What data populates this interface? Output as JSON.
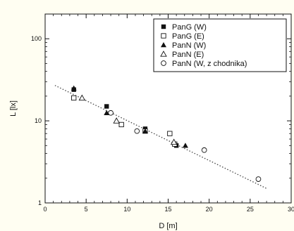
{
  "chart_data": {
    "type": "scatter",
    "title": "",
    "xlabel": "D [m]",
    "ylabel": "L [lx]",
    "xlim": [
      0,
      30
    ],
    "ylim": [
      1,
      200
    ],
    "yscale": "log",
    "xticks": [
      0,
      5,
      10,
      15,
      20,
      25,
      30
    ],
    "xtick_labels": [
      "0",
      "5",
      "10",
      "15",
      "20",
      "25",
      "30"
    ],
    "yticks": [
      1,
      10,
      100
    ],
    "ytick_labels": [
      "1",
      "10",
      "100"
    ],
    "grid": false,
    "legend_position": "top-right",
    "colors": {
      "background": "#fffef2",
      "plot_background": "#ffffff",
      "ink": "#111111",
      "trend_line": "#444444"
    },
    "series": [
      {
        "name": "PanG (W)",
        "marker": "filled-square",
        "points": [
          {
            "x": 3.5,
            "y": 24
          },
          {
            "x": 7.5,
            "y": 15
          },
          {
            "x": 12.2,
            "y": 8
          },
          {
            "x": 16,
            "y": 5
          }
        ]
      },
      {
        "name": "PanG (E)",
        "marker": "open-square",
        "points": [
          {
            "x": 3.5,
            "y": 19
          },
          {
            "x": 9.3,
            "y": 9
          },
          {
            "x": 12.2,
            "y": 7.5
          },
          {
            "x": 15.2,
            "y": 7
          },
          {
            "x": 15.8,
            "y": 5.2
          }
        ]
      },
      {
        "name": "PanN (W)",
        "marker": "filled-triangle",
        "points": [
          {
            "x": 3.5,
            "y": 25
          },
          {
            "x": 7.5,
            "y": 12.5
          },
          {
            "x": 12.2,
            "y": 7.5
          },
          {
            "x": 17.1,
            "y": 5
          }
        ]
      },
      {
        "name": "PanN (E)",
        "marker": "open-triangle",
        "points": [
          {
            "x": 4.5,
            "y": 19
          },
          {
            "x": 8.7,
            "y": 10
          },
          {
            "x": 15.7,
            "y": 5.5
          }
        ]
      },
      {
        "name": "PanN (W, z chodnika)",
        "marker": "open-circle",
        "points": [
          {
            "x": 8,
            "y": 12.5
          },
          {
            "x": 11.2,
            "y": 7.5
          },
          {
            "x": 19.4,
            "y": 4.4
          },
          {
            "x": 26,
            "y": 1.95
          }
        ]
      }
    ],
    "trend_line": {
      "style": "dotted",
      "from": {
        "x": 1.2,
        "y": 27
      },
      "to": {
        "x": 27,
        "y": 1.5
      }
    }
  }
}
